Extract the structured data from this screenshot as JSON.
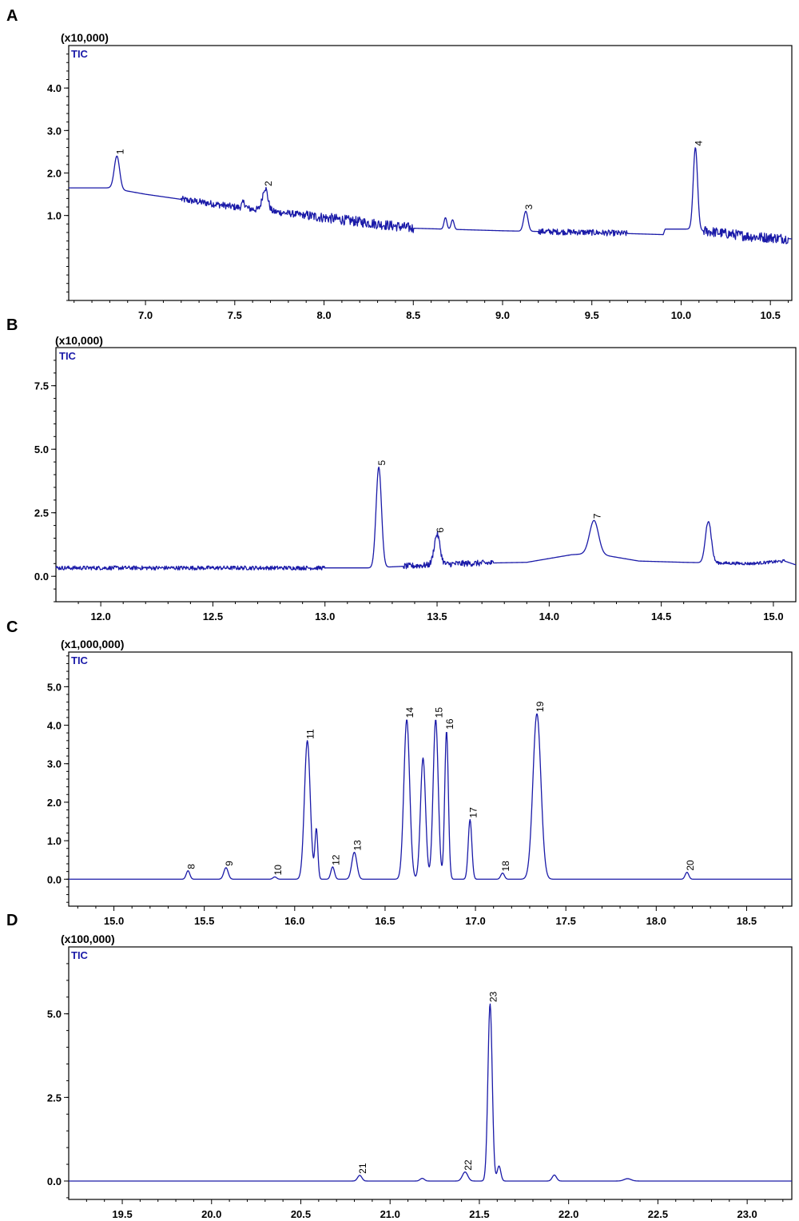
{
  "colors": {
    "trace": "#1a1aa8",
    "tic_label": "#1a1aa8",
    "frame": "#000000"
  },
  "chart_data": [
    {
      "type": "line",
      "panel_label": "A",
      "scale_label": "(x10,000)",
      "series_label": "TIC",
      "xlim": [
        6.57,
        10.62
      ],
      "ylim": [
        -1.0,
        5.0
      ],
      "x_ticks": [
        "7.0",
        "7.5",
        "8.0",
        "8.5",
        "9.0",
        "9.5",
        "10.0",
        "10.5"
      ],
      "y_ticks": [
        "1.0",
        "2.0",
        "3.0",
        "4.0"
      ],
      "baseline": [
        [
          6.57,
          1.65
        ],
        [
          6.8,
          1.65
        ],
        [
          7.0,
          1.5
        ],
        [
          7.2,
          1.38
        ],
        [
          7.5,
          1.2
        ],
        [
          8.0,
          0.95
        ],
        [
          8.5,
          0.7
        ],
        [
          9.0,
          0.64
        ],
        [
          9.5,
          0.6
        ],
        [
          9.9,
          0.55
        ],
        [
          9.91,
          0.68
        ],
        [
          10.05,
          0.68
        ],
        [
          10.2,
          0.6
        ],
        [
          10.4,
          0.5
        ],
        [
          10.62,
          0.45
        ]
      ],
      "noise": [
        [
          7.2,
          7.9,
          0.08
        ],
        [
          7.9,
          8.5,
          0.12
        ],
        [
          9.2,
          9.7,
          0.07
        ],
        [
          10.12,
          10.6,
          0.12
        ]
      ],
      "peaks": [
        {
          "label": "1",
          "rt": 6.84,
          "height": 2.4,
          "width": 0.015
        },
        {
          "label": "",
          "rt": 7.55,
          "height": 1.3,
          "width": 0.01
        },
        {
          "label": "2",
          "rt": 7.67,
          "height": 1.65,
          "width": 0.015
        },
        {
          "label": "",
          "rt": 8.68,
          "height": 0.95,
          "width": 0.008
        },
        {
          "label": "",
          "rt": 8.72,
          "height": 0.9,
          "width": 0.008
        },
        {
          "label": "3",
          "rt": 9.13,
          "height": 1.1,
          "width": 0.012
        },
        {
          "label": "4",
          "rt": 10.08,
          "height": 2.6,
          "width": 0.012
        }
      ]
    },
    {
      "type": "line",
      "panel_label": "B",
      "scale_label": "(x10,000)",
      "series_label": "TIC",
      "xlim": [
        11.8,
        15.1
      ],
      "ylim": [
        -1.0,
        9.0
      ],
      "x_ticks": [
        "12.0",
        "12.5",
        "13.0",
        "13.5",
        "14.0",
        "14.5",
        "15.0"
      ],
      "y_ticks": [
        "0.0",
        "2.5",
        "5.0",
        "7.5"
      ],
      "baseline": [
        [
          11.8,
          0.33
        ],
        [
          13.0,
          0.33
        ],
        [
          13.2,
          0.33
        ],
        [
          13.6,
          0.5
        ],
        [
          13.9,
          0.55
        ],
        [
          14.1,
          0.85
        ],
        [
          14.2,
          0.9
        ],
        [
          14.4,
          0.6
        ],
        [
          14.6,
          0.55
        ],
        [
          14.9,
          0.5
        ],
        [
          15.05,
          0.6
        ],
        [
          15.1,
          0.45
        ]
      ],
      "noise": [
        [
          11.8,
          13.0,
          0.08
        ],
        [
          13.35,
          13.75,
          0.12
        ],
        [
          14.7,
          15.05,
          0.06
        ]
      ],
      "peaks": [
        {
          "label": "5",
          "rt": 13.24,
          "height": 4.3,
          "width": 0.012
        },
        {
          "label": "6",
          "rt": 13.5,
          "height": 1.65,
          "width": 0.013
        },
        {
          "label": "7",
          "rt": 14.2,
          "height": 2.2,
          "width": 0.02
        },
        {
          "label": "",
          "rt": 14.71,
          "height": 2.2,
          "width": 0.013
        }
      ]
    },
    {
      "type": "line",
      "panel_label": "C",
      "scale_label": "(x1,000,000)",
      "series_label": "TIC",
      "xlim": [
        14.75,
        18.75
      ],
      "ylim": [
        -0.7,
        5.9
      ],
      "x_ticks": [
        "15.0",
        "15.5",
        "16.0",
        "16.5",
        "17.0",
        "17.5",
        "18.0",
        "18.5"
      ],
      "y_ticks": [
        "0.0",
        "1.0",
        "2.0",
        "3.0",
        "4.0",
        "5.0"
      ],
      "baseline": [
        [
          14.75,
          0.0
        ],
        [
          18.75,
          0.0
        ]
      ],
      "noise": [],
      "peaks": [
        {
          "label": "8",
          "rt": 15.41,
          "height": 0.22,
          "width": 0.01
        },
        {
          "label": "9",
          "rt": 15.62,
          "height": 0.3,
          "width": 0.012
        },
        {
          "label": "10",
          "rt": 15.89,
          "height": 0.06,
          "width": 0.01
        },
        {
          "label": "11",
          "rt": 16.07,
          "height": 3.6,
          "width": 0.016
        },
        {
          "label": "",
          "rt": 16.12,
          "height": 1.3,
          "width": 0.008
        },
        {
          "label": "12",
          "rt": 16.21,
          "height": 0.32,
          "width": 0.01
        },
        {
          "label": "13",
          "rt": 16.33,
          "height": 0.7,
          "width": 0.014
        },
        {
          "label": "14",
          "rt": 16.62,
          "height": 4.15,
          "width": 0.016
        },
        {
          "label": "",
          "rt": 16.71,
          "height": 3.15,
          "width": 0.014
        },
        {
          "label": "15",
          "rt": 16.78,
          "height": 4.15,
          "width": 0.014
        },
        {
          "label": "16",
          "rt": 16.84,
          "height": 3.85,
          "width": 0.01
        },
        {
          "label": "17",
          "rt": 16.97,
          "height": 1.55,
          "width": 0.01
        },
        {
          "label": "18",
          "rt": 17.15,
          "height": 0.16,
          "width": 0.01
        },
        {
          "label": "19",
          "rt": 17.34,
          "height": 4.3,
          "width": 0.022
        },
        {
          "label": "20",
          "rt": 18.17,
          "height": 0.18,
          "width": 0.01
        }
      ]
    },
    {
      "type": "line",
      "panel_label": "D",
      "scale_label": "(x100,000)",
      "series_label": "TIC",
      "xlim": [
        19.2,
        23.25
      ],
      "ylim": [
        -0.55,
        7.0
      ],
      "x_ticks": [
        "19.5",
        "20.0",
        "20.5",
        "21.0",
        "21.5",
        "22.0",
        "22.5",
        "23.0"
      ],
      "y_ticks": [
        "0.0",
        "2.5",
        "5.0"
      ],
      "baseline": [
        [
          19.2,
          0.0
        ],
        [
          23.25,
          0.0
        ]
      ],
      "noise": [],
      "peaks": [
        {
          "label": "21",
          "rt": 20.83,
          "height": 0.17,
          "width": 0.012
        },
        {
          "label": "",
          "rt": 21.18,
          "height": 0.08,
          "width": 0.012
        },
        {
          "label": "22",
          "rt": 21.42,
          "height": 0.27,
          "width": 0.015
        },
        {
          "label": "23",
          "rt": 21.56,
          "height": 5.3,
          "width": 0.012
        },
        {
          "label": "",
          "rt": 21.61,
          "height": 0.45,
          "width": 0.01
        },
        {
          "label": "",
          "rt": 21.92,
          "height": 0.18,
          "width": 0.012
        },
        {
          "label": "",
          "rt": 22.33,
          "height": 0.07,
          "width": 0.02
        }
      ]
    }
  ]
}
